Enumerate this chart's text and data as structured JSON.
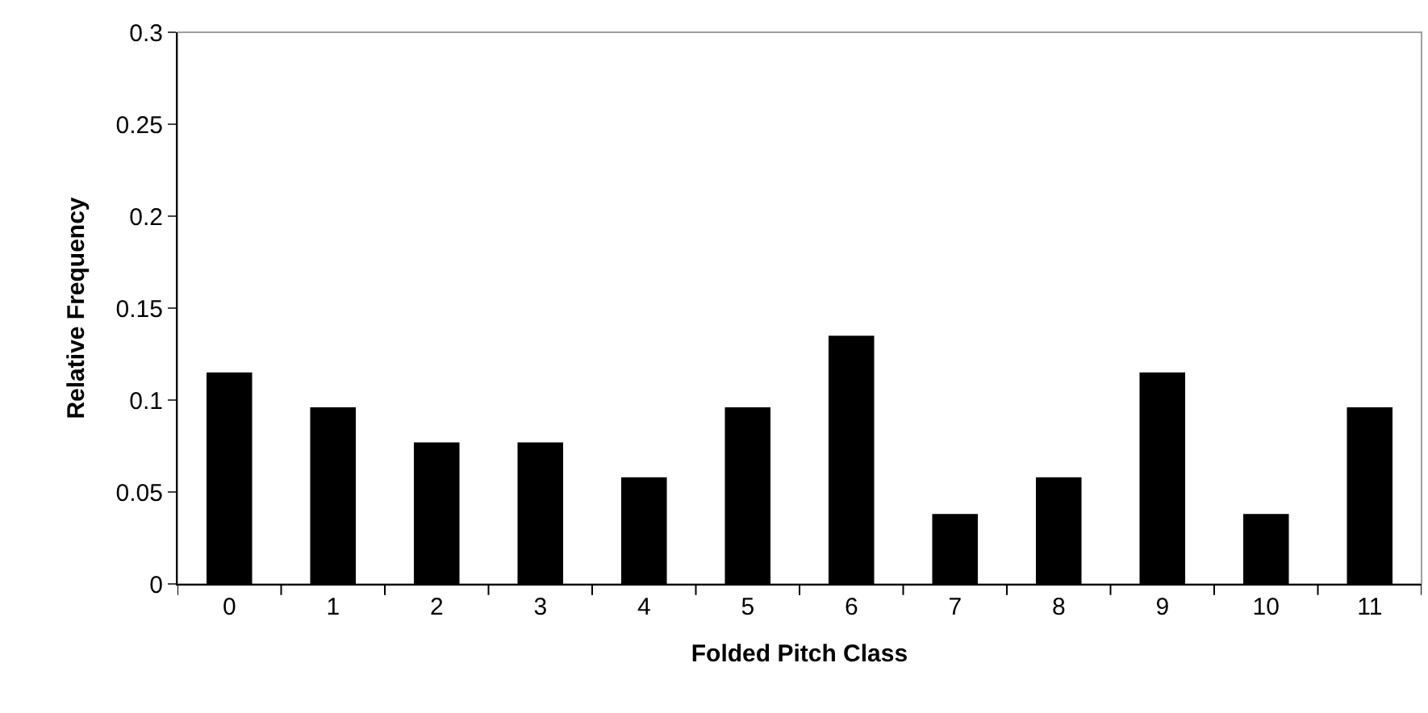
{
  "chart_data": {
    "type": "bar",
    "xlabel": "Folded Pitch Class",
    "ylabel": "Relative Frequency",
    "categories": [
      "0",
      "1",
      "2",
      "3",
      "4",
      "5",
      "6",
      "7",
      "8",
      "9",
      "10",
      "11"
    ],
    "values": [
      0.115,
      0.096,
      0.077,
      0.077,
      0.058,
      0.096,
      0.135,
      0.038,
      0.058,
      0.115,
      0.038,
      0.096
    ],
    "color": "#000000",
    "ylim": [
      0,
      0.3
    ],
    "yticks": [
      0,
      0.05,
      0.1,
      0.15,
      0.2,
      0.25,
      0.3
    ],
    "grid": false,
    "legend": false
  }
}
